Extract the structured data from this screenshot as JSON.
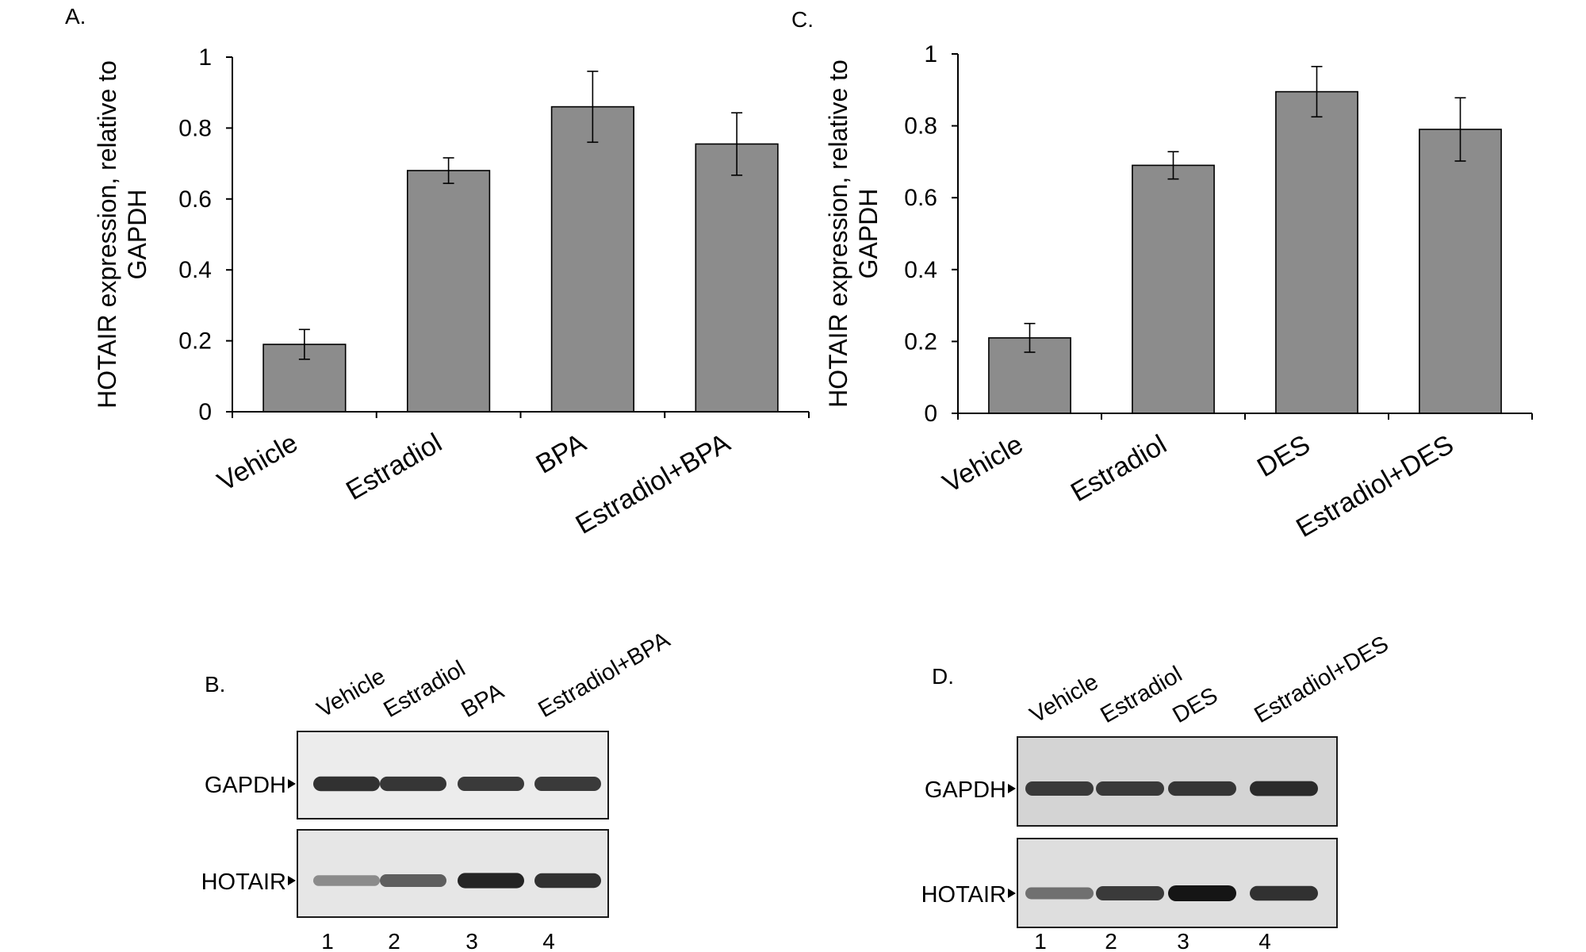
{
  "figure": {
    "panels": [
      {
        "letter": "A."
      },
      {
        "letter": "B."
      },
      {
        "letter": "C."
      },
      {
        "letter": "D."
      }
    ]
  },
  "chart_data": [
    {
      "panel": "A.",
      "type": "bar",
      "categories": [
        "Vehicle",
        "Estradiol",
        "BPA",
        "Estradiol+BPA"
      ],
      "values": [
        0.19,
        0.68,
        0.86,
        0.755
      ],
      "errors": [
        0.042,
        0.036,
        0.1,
        0.088
      ],
      "ylabel": "HOTAIR expression, relative to GAPDH",
      "ylabel_lines": [
        "HOTAIR expression, relative to",
        "GAPDH"
      ],
      "ylim": [
        0,
        1
      ],
      "yticks": [
        0,
        0.2,
        0.4,
        0.6,
        0.8,
        1
      ],
      "ytick_labels": [
        "0",
        "0.2",
        "0.4",
        "0.6",
        "0.8",
        "1"
      ],
      "bar_color": "#8c8c8c",
      "grid": false
    },
    {
      "panel": "C.",
      "type": "bar",
      "categories": [
        "Vehicle",
        "Estradiol",
        "DES",
        "Estradiol+DES"
      ],
      "values": [
        0.21,
        0.69,
        0.895,
        0.79
      ],
      "errors": [
        0.04,
        0.038,
        0.07,
        0.088
      ],
      "ylabel": "HOTAIR expression, relative to GAPDH",
      "ylabel_lines": [
        "HOTAIR expression, relative to",
        "GAPDH"
      ],
      "ylim": [
        0,
        1
      ],
      "yticks": [
        0,
        0.2,
        0.4,
        0.6,
        0.8,
        1
      ],
      "ytick_labels": [
        "0",
        "0.2",
        "0.4",
        "0.6",
        "0.8",
        "1"
      ],
      "bar_color": "#8c8c8c",
      "grid": false
    }
  ],
  "gels": [
    {
      "panel": "B.",
      "lanes": [
        "Vehicle",
        "Estradiol",
        "BPA",
        "Estradiol+BPA"
      ],
      "lane_numbers": [
        "1",
        "2",
        "3",
        "4"
      ],
      "rows": [
        {
          "label": "GAPDH",
          "intensity": [
            0.85,
            0.82,
            0.8,
            0.8
          ],
          "background": "#ececec"
        },
        {
          "label": "HOTAIR",
          "intensity": [
            0.35,
            0.6,
            0.92,
            0.85
          ],
          "background": "#e6e6e6"
        }
      ]
    },
    {
      "panel": "D.",
      "lanes": [
        "Vehicle",
        "Estradiol",
        "DES",
        "Estradiol+DES"
      ],
      "lane_numbers": [
        "1",
        "2",
        "3",
        "4"
      ],
      "rows": [
        {
          "label": "GAPDH",
          "intensity": [
            0.8,
            0.8,
            0.82,
            0.88
          ],
          "background": "#d4d4d4"
        },
        {
          "label": "HOTAIR",
          "intensity": [
            0.5,
            0.8,
            1.0,
            0.85
          ],
          "background": "#dedede"
        }
      ]
    }
  ]
}
